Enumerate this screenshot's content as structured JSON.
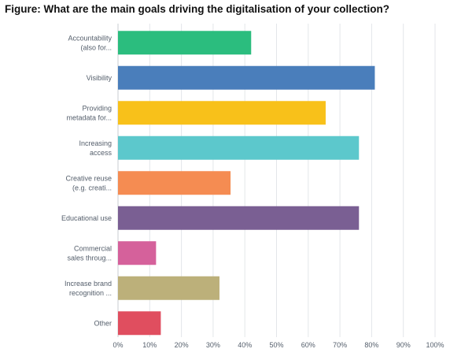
{
  "figure_title": "Figure: What are the main goals driving the digitalisation of your collection?",
  "chart_data": {
    "type": "bar",
    "orientation": "horizontal",
    "title": "Figure: What are the main goals driving the digitalisation of your collection?",
    "categories": [
      [
        "Accountability",
        "(also for..."
      ],
      [
        "Visibility"
      ],
      [
        "Providing",
        "metadata for..."
      ],
      [
        "Increasing",
        "access"
      ],
      [
        "Creative reuse",
        "(e.g. creati..."
      ],
      [
        "Educational use"
      ],
      [
        "Commercial",
        "sales throug..."
      ],
      [
        "Increase brand",
        "recognition ..."
      ],
      [
        "Other"
      ]
    ],
    "values": [
      42,
      81,
      65.5,
      76,
      35.5,
      76,
      12,
      32,
      13.5
    ],
    "colors": [
      "#2bbd7e",
      "#4a7ebb",
      "#f8c11a",
      "#5cc8cc",
      "#f58c52",
      "#7a5f93",
      "#d5619b",
      "#bcb07a",
      "#e04e5f"
    ],
    "xlim": [
      0,
      100
    ],
    "xticks": [
      "0%",
      "10%",
      "20%",
      "30%",
      "40%",
      "50%",
      "60%",
      "70%",
      "80%",
      "90%",
      "100%"
    ],
    "grid": true,
    "legend": "none"
  }
}
